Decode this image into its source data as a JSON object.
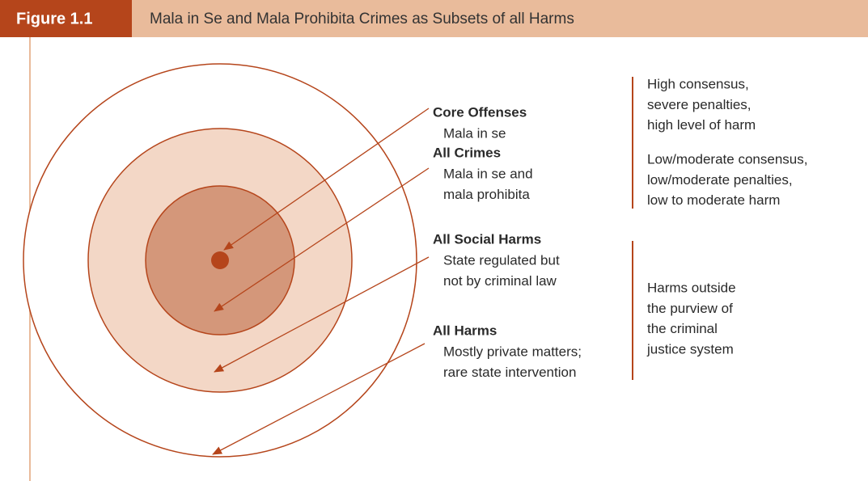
{
  "header": {
    "label": "Figure 1.1",
    "title": "Mala in Se and Mala Prohibita Crimes as Subsets of all Harms"
  },
  "items": [
    {
      "label": "Core Offenses",
      "lines": [
        "Mala in se"
      ]
    },
    {
      "label": "All Crimes",
      "lines": [
        "Mala in se and",
        "mala prohibita"
      ]
    },
    {
      "label": "All Social Harms",
      "lines": [
        "State regulated but",
        "not by criminal law"
      ]
    },
    {
      "label": "All Harms",
      "lines": [
        "Mostly private matters;",
        "rare state intervention"
      ]
    }
  ],
  "notes": [
    [
      "High consensus,",
      "severe penalties,",
      "high level of harm"
    ],
    [
      "Low/moderate consensus,",
      "low/moderate penalties,",
      "low to moderate harm"
    ],
    [
      "Harms outside",
      "the purview of",
      "the criminal",
      "justice system"
    ]
  ]
}
